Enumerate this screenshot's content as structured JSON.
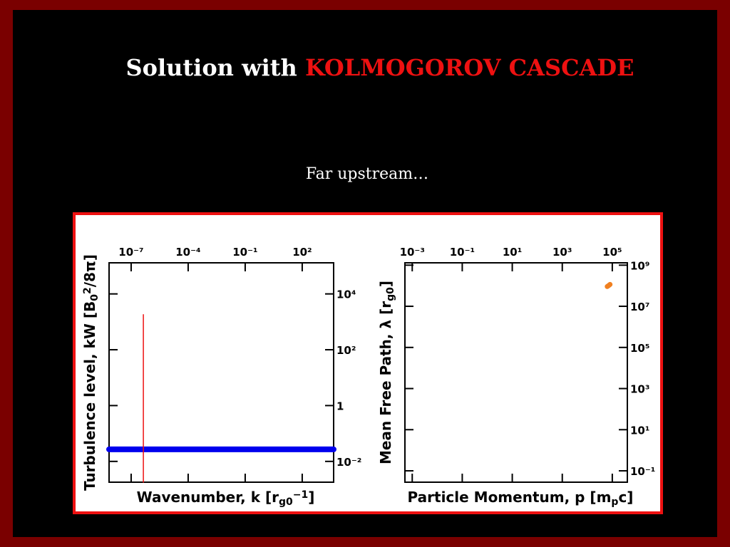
{
  "slide": {
    "title": [
      {
        "text": "Solution with ",
        "color": "#ffffff"
      },
      {
        "text": "KOLMOGOROV CASCADE",
        "color": "#ee1111"
      }
    ],
    "subtitle": "Far upstream…"
  },
  "chart_data": [
    {
      "type": "line",
      "log_x": true,
      "log_y": true,
      "xlabel": [
        {
          "text": "Wavenumber, k [r",
          "shift": "none"
        },
        {
          "text": "g0",
          "shift": "sub"
        },
        {
          "text": "−1",
          "shift": "sup"
        },
        {
          "text": "]",
          "shift": "none"
        }
      ],
      "ylabel": [
        {
          "text": "Turbulence level, kW [B",
          "shift": "none"
        },
        {
          "text": "0",
          "shift": "sub"
        },
        {
          "text": "2",
          "shift": "sup"
        },
        {
          "text": "/8π]",
          "shift": "none"
        }
      ],
      "xlim": [
        6.9e-09,
        4500
      ],
      "ylim": [
        0.0018,
        130000
      ],
      "xticks": [
        {
          "value": 1e-07,
          "label": "10⁻⁷"
        },
        {
          "value": 0.0001,
          "label": "10⁻⁴"
        },
        {
          "value": 0.1,
          "label": "10⁻¹"
        },
        {
          "value": 100,
          "label": "10²"
        }
      ],
      "yticks": [
        {
          "value": 0.01,
          "label": "10⁻²"
        },
        1,
        {
          "value": 100,
          "label": "10²"
        },
        {
          "value": 10000,
          "label": "10⁴"
        }
      ],
      "series": [
        {
          "color": "#0000ee",
          "width": 8,
          "x": [
            6.9e-09,
            4500
          ],
          "values": [
            0.027,
            0.027
          ]
        },
        {
          "color": "#ee1111",
          "width": 1.5,
          "x": [
            4.4e-07,
            4.4e-07
          ],
          "values": [
            0.0018,
            1800
          ]
        }
      ]
    },
    {
      "type": "line",
      "log_x": true,
      "log_y": true,
      "xlabel": [
        {
          "text": "Particle Momentum, p [m",
          "shift": "none"
        },
        {
          "text": "p",
          "shift": "sub"
        },
        {
          "text": "c]",
          "shift": "none"
        }
      ],
      "ylabel": [
        {
          "text": "Mean Free Path, λ [r",
          "shift": "none"
        },
        {
          "text": "g0",
          "shift": "sub"
        },
        {
          "text": "]",
          "shift": "none"
        }
      ],
      "xlim": [
        0.00051,
        400000
      ],
      "ylim": [
        0.028,
        1300000000
      ],
      "xticks": [
        {
          "value": 0.001,
          "label": "10⁻³"
        },
        {
          "value": 0.1,
          "label": "10⁻¹"
        },
        {
          "value": 10,
          "label": "10¹"
        },
        {
          "value": 1000,
          "label": "10³"
        },
        {
          "value": 100000,
          "label": "10⁵"
        }
      ],
      "yticks": [
        {
          "value": 0.1,
          "label": "10⁻¹"
        },
        {
          "value": 10,
          "label": "10¹"
        },
        {
          "value": 1000,
          "label": "10³"
        },
        {
          "value": 100000,
          "label": "10⁵"
        },
        {
          "value": 10000000,
          "label": "10⁷"
        },
        {
          "value": 1000000000,
          "label": "10⁹"
        }
      ],
      "series": [
        {
          "color": "#f08020",
          "width": 7,
          "x": [
            63000,
            70000,
            81000
          ],
          "values": [
            91000000,
            100000000,
            115000000
          ]
        }
      ]
    }
  ]
}
